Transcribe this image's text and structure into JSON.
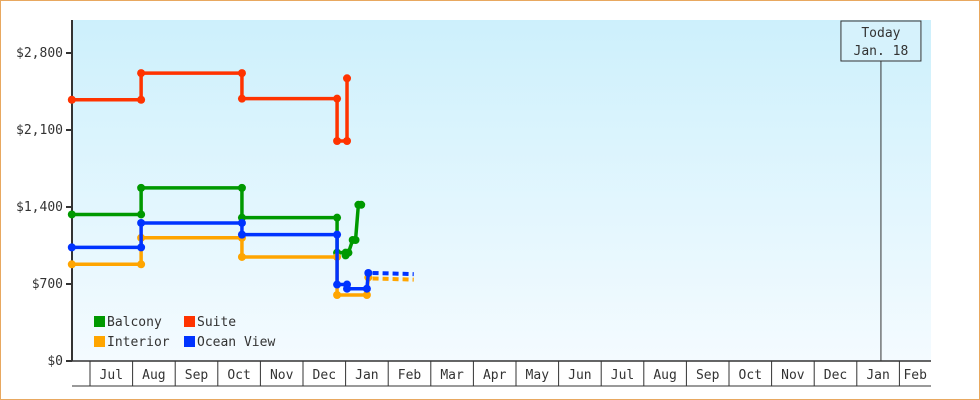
{
  "chart_data": {
    "type": "line",
    "step": true,
    "y_ticks": [
      "$0",
      "$700",
      "$1,400",
      "$2,100",
      "$2,800"
    ],
    "y_tick_values": [
      0,
      700,
      1400,
      2100,
      2800
    ],
    "ylim": [
      0,
      3100
    ],
    "x_tick_labels": [
      "Jul",
      "Aug",
      "Sep",
      "Oct",
      "Nov",
      "Dec",
      "Jan",
      "Feb",
      "Mar",
      "Apr",
      "May",
      "Jun",
      "Jul",
      "Aug",
      "Sep",
      "Oct",
      "Nov",
      "Dec",
      "Jan",
      "Feb"
    ],
    "x_start": "Jun 1",
    "today": {
      "label": "Today",
      "date_label": "Jan. 18",
      "date": "Jan 18"
    },
    "legend_position": "bottom-left",
    "series": [
      {
        "name": "Balcony",
        "color": "#009900",
        "points": [
          [
            "Jun 18",
            1332
          ],
          [
            "Aug 7",
            1332
          ],
          [
            "Aug 7",
            1574
          ],
          [
            "Oct 18",
            1574
          ],
          [
            "Oct 18",
            1303
          ],
          [
            "Dec 25",
            1303
          ],
          [
            "Dec 25",
            985
          ],
          [
            "Dec 31",
            985
          ],
          [
            "Jan 1",
            960
          ],
          [
            "Jan 3",
            985
          ],
          [
            "Jan 6",
            1100
          ],
          [
            "Jan 8",
            1100
          ],
          [
            "Jan 10",
            1420
          ],
          [
            "Jan 12",
            1420
          ]
        ],
        "projection": []
      },
      {
        "name": "Suite",
        "color": "#ff3300",
        "points": [
          [
            "Jun 18",
            2375
          ],
          [
            "Aug 7",
            2375
          ],
          [
            "Aug 7",
            2617
          ],
          [
            "Oct 18",
            2617
          ],
          [
            "Oct 18",
            2385
          ],
          [
            "Dec 25",
            2385
          ],
          [
            "Dec 25",
            2000
          ],
          [
            "Jan 2",
            2000
          ],
          [
            "Jan 2",
            2570
          ]
        ],
        "projection": []
      },
      {
        "name": "Interior",
        "color": "#ffa500",
        "points": [
          [
            "Jun 18",
            879
          ],
          [
            "Aug 7",
            879
          ],
          [
            "Aug 7",
            1120
          ],
          [
            "Oct 18",
            1120
          ],
          [
            "Oct 18",
            946
          ],
          [
            "Dec 25",
            946
          ],
          [
            "Dec 25",
            600
          ],
          [
            "Jan 16",
            600
          ],
          [
            "Jan 17",
            760
          ]
        ],
        "projection": [
          [
            "Jan 20",
            750
          ],
          [
            "Feb 19",
            740
          ]
        ]
      },
      {
        "name": "Ocean View",
        "color": "#0033ff",
        "points": [
          [
            "Jun 18",
            1033
          ],
          [
            "Aug 7",
            1033
          ],
          [
            "Aug 7",
            1255
          ],
          [
            "Oct 18",
            1255
          ],
          [
            "Oct 18",
            1149
          ],
          [
            "Dec 25",
            1149
          ],
          [
            "Dec 25",
            695
          ],
          [
            "Jan 2",
            695
          ],
          [
            "Jan 2",
            657
          ],
          [
            "Jan 16",
            657
          ],
          [
            "Jan 17",
            800
          ]
        ],
        "projection": [
          [
            "Jan 20",
            800
          ],
          [
            "Feb 19",
            790
          ]
        ]
      }
    ]
  }
}
